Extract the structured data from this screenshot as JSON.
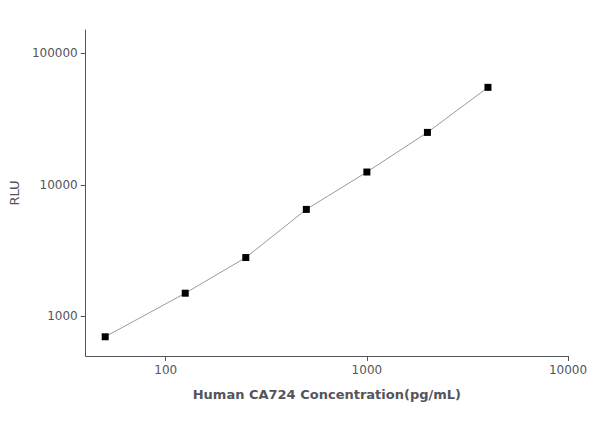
{
  "chart_data": {
    "type": "line",
    "xlabel": "Human CA724 Concentration(pg/mL)",
    "ylabel": "RLU",
    "x": [
      50,
      125,
      250,
      500,
      1000,
      2000,
      4000
    ],
    "values": [
      700,
      1500,
      2800,
      6500,
      12500,
      25000,
      55000
    ],
    "xlim": [
      40,
      10000
    ],
    "ylim": [
      500,
      150000
    ],
    "xticks": [
      100,
      1000,
      10000
    ],
    "yticks": [
      1000,
      10000,
      100000
    ],
    "log": true,
    "grid": false,
    "color": "#999999",
    "colors": [
      "#000000",
      "#000000",
      "#000000",
      "#000000",
      "#000000",
      "#000000",
      "#000000"
    ],
    "marker": "square"
  }
}
